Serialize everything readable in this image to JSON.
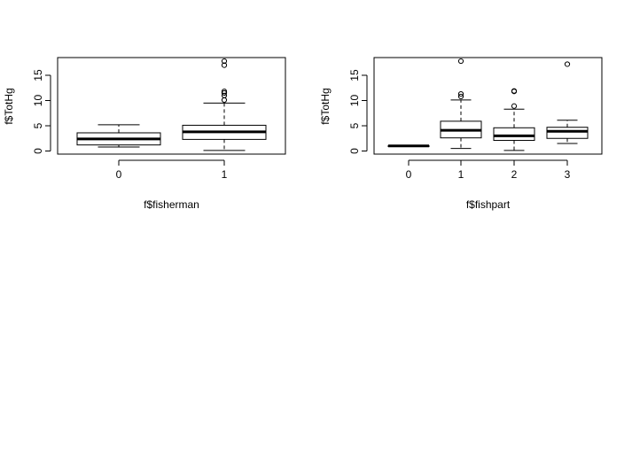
{
  "chart_data": [
    {
      "type": "boxplot",
      "xlabel": "f$fisherman",
      "ylabel": "f$TotHg",
      "categories": [
        "0",
        "1"
      ],
      "ylim": [
        0,
        18
      ],
      "yticks": [
        0,
        5,
        10,
        15
      ],
      "boxes": [
        {
          "category": "0",
          "whisker_low": 0.8,
          "q1": 1.2,
          "median": 2.4,
          "q3": 3.6,
          "whisker_high": 5.2,
          "outliers": []
        },
        {
          "category": "1",
          "whisker_low": 0.1,
          "q1": 2.3,
          "median": 3.8,
          "q3": 5.1,
          "whisker_high": 9.5,
          "outliers": [
            10.1,
            11.0,
            11.5,
            11.8,
            17.0,
            17.8
          ]
        }
      ]
    },
    {
      "type": "boxplot",
      "xlabel": "f$fishpart",
      "ylabel": "f$TotHg",
      "categories": [
        "0",
        "1",
        "2",
        "3"
      ],
      "ylim": [
        0,
        18
      ],
      "yticks": [
        0,
        5,
        10,
        15
      ],
      "boxes": [
        {
          "category": "0",
          "whisker_low": 0.9,
          "q1": 0.95,
          "median": 1.0,
          "q3": 1.05,
          "whisker_high": 1.1,
          "outliers": []
        },
        {
          "category": "1",
          "whisker_low": 0.5,
          "q1": 2.6,
          "median": 4.1,
          "q3": 5.9,
          "whisker_high": 10.1,
          "outliers": [
            10.8,
            11.3,
            17.8
          ]
        },
        {
          "category": "2",
          "whisker_low": 0.1,
          "q1": 2.1,
          "median": 3.0,
          "q3": 4.6,
          "whisker_high": 8.3,
          "outliers": [
            8.9,
            11.8,
            11.9
          ]
        },
        {
          "category": "3",
          "whisker_low": 1.5,
          "q1": 2.5,
          "median": 3.9,
          "q3": 4.7,
          "whisker_high": 6.1,
          "outliers": [
            17.2
          ]
        }
      ]
    }
  ]
}
